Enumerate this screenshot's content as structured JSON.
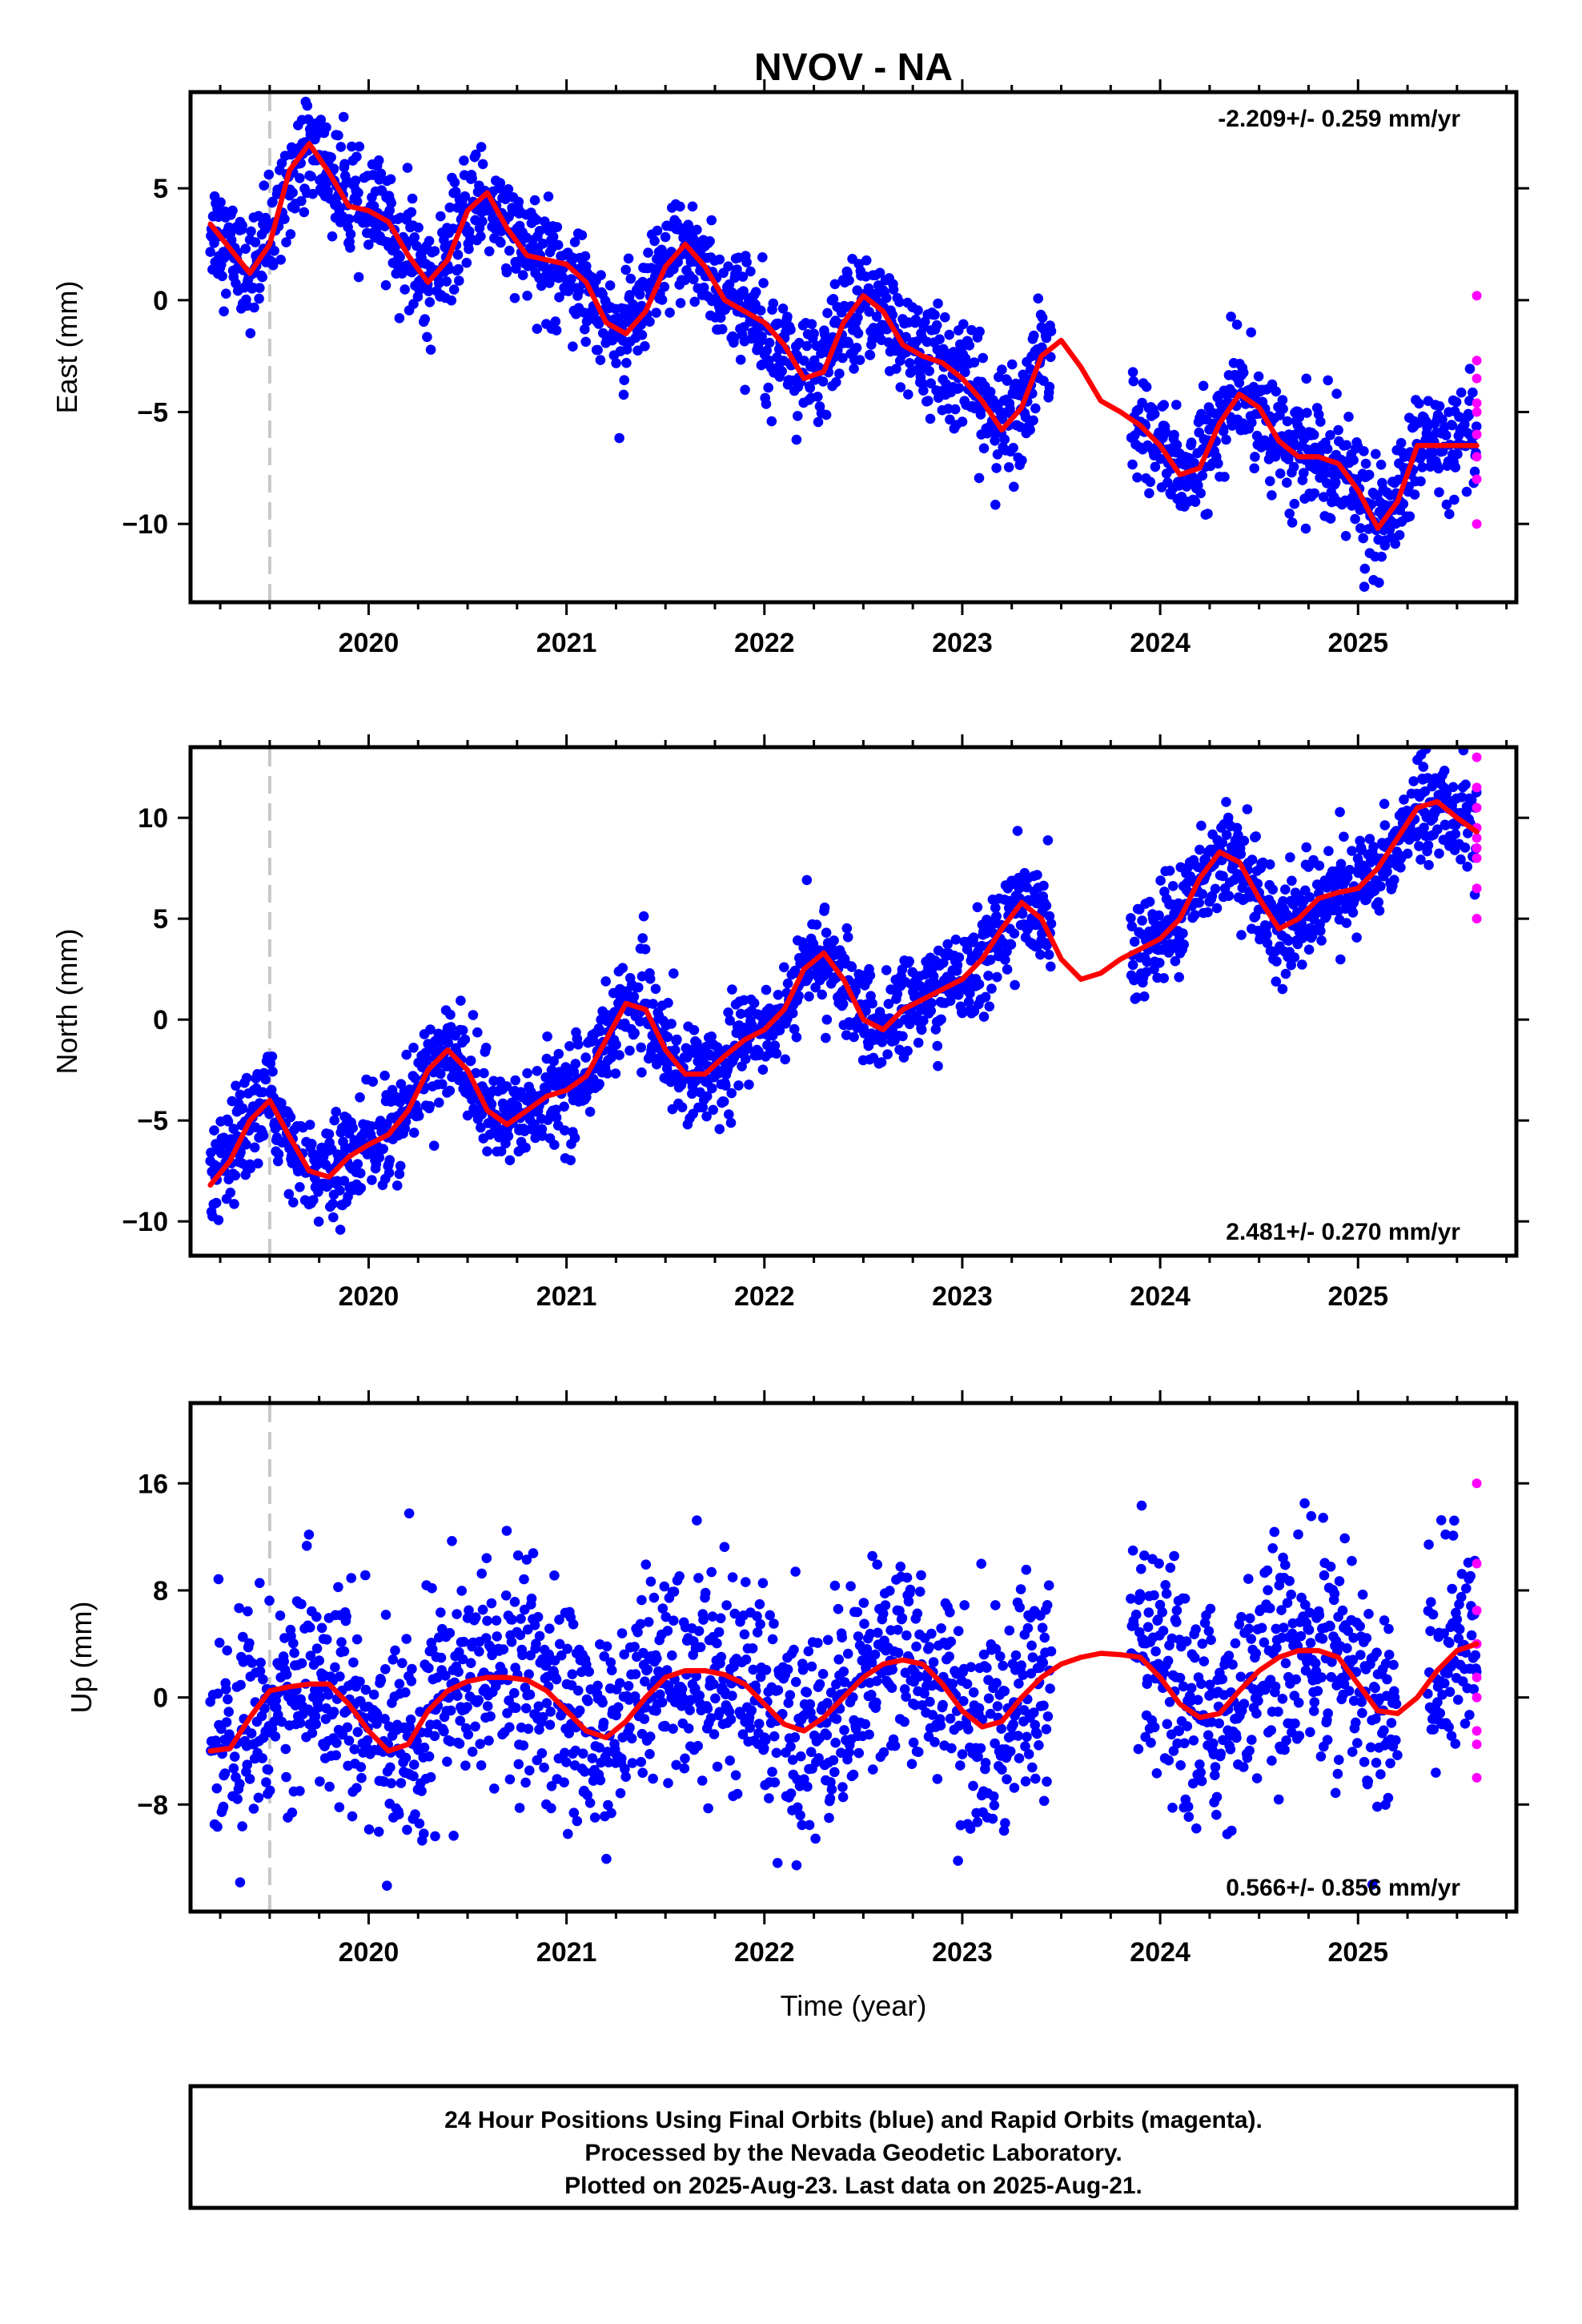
{
  "title": "NVOV - NA",
  "colors": {
    "final": "#0000ff",
    "rapid": "#ff00ff",
    "fit": "#ff0000",
    "marker": "#c8c8c8"
  },
  "footer": {
    "line1": "24 Hour Positions Using Final Orbits (blue) and Rapid Orbits (magenta).",
    "line2": "Processed by the Nevada Geodetic Laboratory.",
    "line3": "Plotted on 2025-Aug-23. Last data on 2025-Aug-21."
  },
  "chart_data": [
    {
      "type": "scatter",
      "ylabel": "East (mm)",
      "xlabel": "",
      "rate_label": "-2.209+/- 0.259 mm/yr",
      "xlim": [
        2019.1,
        2025.8
      ],
      "ylim": [
        -13.5,
        9.3
      ],
      "yticks": [
        5,
        0,
        -5,
        -10
      ],
      "xticks": [
        2020,
        2021,
        2022,
        2023,
        2024,
        2025
      ],
      "equipment_change": 2019.5,
      "fit_curve": {
        "x": [
          2019.2,
          2019.3,
          2019.4,
          2019.5,
          2019.6,
          2019.7,
          2019.8,
          2019.9,
          2020.0,
          2020.1,
          2020.2,
          2020.3,
          2020.4,
          2020.5,
          2020.6,
          2020.7,
          2020.8,
          2020.9,
          2021.0,
          2021.1,
          2021.2,
          2021.3,
          2021.4,
          2021.5,
          2021.6,
          2021.7,
          2021.8,
          2021.9,
          2022.0,
          2022.1,
          2022.2,
          2022.3,
          2022.4,
          2022.5,
          2022.6,
          2022.7,
          2022.8,
          2022.9,
          2023.0,
          2023.1,
          2023.2,
          2023.3,
          2023.4,
          2023.5,
          2023.6,
          2023.7,
          2023.8,
          2023.9,
          2024.0,
          2024.1,
          2024.2,
          2024.3,
          2024.4,
          2024.5,
          2024.6,
          2024.7,
          2024.8,
          2024.9,
          2025.0,
          2025.1,
          2025.2,
          2025.3,
          2025.4,
          2025.5,
          2025.6
        ],
        "y": [
          3.4,
          2.3,
          1.2,
          2.5,
          5.8,
          7.0,
          5.7,
          4.2,
          4.0,
          3.5,
          2.0,
          0.8,
          1.8,
          4.0,
          4.8,
          3.2,
          2.0,
          1.8,
          1.6,
          0.8,
          -1.0,
          -1.5,
          -0.5,
          1.5,
          2.5,
          1.5,
          0.0,
          -0.5,
          -1.0,
          -2.0,
          -3.5,
          -3.2,
          -1.0,
          0.2,
          -0.5,
          -2.0,
          -2.5,
          -2.8,
          -3.5,
          -4.5,
          -5.8,
          -4.8,
          -2.5,
          -1.8,
          -3.0,
          -4.5,
          -5.0,
          -5.6,
          -6.5,
          -7.8,
          -7.5,
          -5.5,
          -4.2,
          -4.8,
          -6.3,
          -7.0,
          -7.0,
          -7.3,
          -8.5,
          -10.2,
          -9.0,
          -6.5,
          -6.5,
          -6.5,
          -6.5
        ]
      },
      "scatter_model": {
        "x_start": 2019.2,
        "x_end": 2025.6,
        "gaps": [
          [
            2023.45,
            2023.85
          ]
        ],
        "noise_sd": 1.2
      },
      "rapid_points": {
        "x": [
          2025.6,
          2025.6,
          2025.6,
          2025.6,
          2025.6,
          2025.6,
          2025.6,
          2025.6,
          2025.6
        ],
        "y": [
          0.2,
          -2.7,
          -3.5,
          -4.6,
          -5.0,
          -6.0,
          -7.0,
          -8.0,
          -10.0
        ]
      }
    },
    {
      "type": "scatter",
      "ylabel": "North (mm)",
      "xlabel": "",
      "rate_label": "2.481+/- 0.270 mm/yr",
      "xlim": [
        2019.1,
        2025.8
      ],
      "ylim": [
        -11.7,
        13.5
      ],
      "yticks": [
        10,
        5,
        0,
        -5,
        -10
      ],
      "xticks": [
        2020,
        2021,
        2022,
        2023,
        2024,
        2025
      ],
      "equipment_change": 2019.5,
      "fit_curve": {
        "x": [
          2019.2,
          2019.3,
          2019.4,
          2019.5,
          2019.6,
          2019.7,
          2019.8,
          2019.9,
          2020.0,
          2020.1,
          2020.2,
          2020.3,
          2020.4,
          2020.5,
          2020.6,
          2020.7,
          2020.8,
          2020.9,
          2021.0,
          2021.1,
          2021.2,
          2021.3,
          2021.4,
          2021.5,
          2021.6,
          2021.7,
          2021.8,
          2021.9,
          2022.0,
          2022.1,
          2022.2,
          2022.3,
          2022.4,
          2022.5,
          2022.6,
          2022.7,
          2022.8,
          2022.9,
          2023.0,
          2023.1,
          2023.2,
          2023.3,
          2023.4,
          2023.5,
          2023.6,
          2023.7,
          2023.8,
          2023.9,
          2024.0,
          2024.1,
          2024.2,
          2024.3,
          2024.4,
          2024.5,
          2024.6,
          2024.7,
          2024.8,
          2024.9,
          2025.0,
          2025.1,
          2025.2,
          2025.3,
          2025.4,
          2025.5,
          2025.6
        ],
        "y": [
          -8.2,
          -7.0,
          -5.0,
          -4.0,
          -5.8,
          -7.5,
          -7.8,
          -6.8,
          -6.2,
          -5.7,
          -4.5,
          -2.5,
          -1.5,
          -2.5,
          -4.5,
          -5.2,
          -4.5,
          -3.8,
          -3.5,
          -2.8,
          -1.0,
          0.8,
          0.5,
          -1.5,
          -2.7,
          -2.7,
          -1.8,
          -1.0,
          -0.5,
          0.5,
          2.5,
          3.3,
          2.0,
          0.0,
          -0.5,
          0.5,
          1.0,
          1.5,
          2.0,
          3.0,
          4.5,
          5.8,
          5.0,
          3.0,
          2.0,
          2.3,
          3.0,
          3.5,
          4.0,
          5.0,
          7.0,
          8.3,
          7.8,
          6.0,
          4.5,
          5.0,
          6.0,
          6.3,
          6.5,
          7.5,
          9.0,
          10.5,
          10.8,
          10.0,
          9.3
        ]
      },
      "scatter_model": {
        "x_start": 2019.2,
        "x_end": 2025.6,
        "gaps": [
          [
            2023.45,
            2023.85
          ]
        ],
        "noise_sd": 1.2
      },
      "rapid_points": {
        "x": [
          2025.6,
          2025.6,
          2025.6,
          2025.6,
          2025.6,
          2025.6,
          2025.6,
          2025.6,
          2025.6
        ],
        "y": [
          13.0,
          11.5,
          10.5,
          9.5,
          9.0,
          8.5,
          8.0,
          6.5,
          5.0
        ]
      }
    },
    {
      "type": "scatter",
      "ylabel": "Up (mm)",
      "xlabel": "Time (year)",
      "rate_label": "0.566+/- 0.856 mm/yr",
      "xlim": [
        2019.1,
        2025.8
      ],
      "ylim": [
        -16.0,
        22.0
      ],
      "yticks": [
        16,
        8,
        0,
        -8
      ],
      "xticks": [
        2020,
        2021,
        2022,
        2023,
        2024,
        2025
      ],
      "equipment_change": 2019.5,
      "fit_curve": {
        "x": [
          2019.2,
          2019.3,
          2019.4,
          2019.5,
          2019.6,
          2019.7,
          2019.8,
          2019.9,
          2020.0,
          2020.1,
          2020.2,
          2020.3,
          2020.4,
          2020.5,
          2020.6,
          2020.7,
          2020.8,
          2020.9,
          2021.0,
          2021.1,
          2021.2,
          2021.3,
          2021.4,
          2021.5,
          2021.6,
          2021.7,
          2021.8,
          2021.9,
          2022.0,
          2022.1,
          2022.2,
          2022.3,
          2022.4,
          2022.5,
          2022.6,
          2022.7,
          2022.8,
          2022.9,
          2023.0,
          2023.1,
          2023.2,
          2023.3,
          2023.4,
          2023.5,
          2023.6,
          2023.7,
          2023.8,
          2023.9,
          2024.0,
          2024.1,
          2024.2,
          2024.3,
          2024.4,
          2024.5,
          2024.6,
          2024.7,
          2024.8,
          2024.9,
          2025.0,
          2025.1,
          2025.2,
          2025.3,
          2025.4,
          2025.5,
          2025.6
        ],
        "y": [
          -4.0,
          -3.8,
          -1.5,
          0.5,
          0.8,
          1.0,
          1.0,
          -0.5,
          -2.5,
          -4.0,
          -3.5,
          -1.0,
          0.5,
          1.2,
          1.5,
          1.5,
          1.3,
          0.5,
          -1.0,
          -2.5,
          -3.0,
          -1.8,
          0.0,
          1.5,
          2.0,
          2.0,
          1.7,
          1.0,
          -0.5,
          -2.0,
          -2.5,
          -1.5,
          0.0,
          1.5,
          2.5,
          2.8,
          2.5,
          1.0,
          -1.0,
          -2.2,
          -1.8,
          0.0,
          1.5,
          2.5,
          3.0,
          3.3,
          3.2,
          3.0,
          1.5,
          -0.5,
          -1.5,
          -1.2,
          0.5,
          2.0,
          3.0,
          3.5,
          3.5,
          3.0,
          1.0,
          -1.0,
          -1.2,
          0.0,
          2.0,
          3.5,
          4.0
        ]
      },
      "scatter_model": {
        "x_start": 2019.2,
        "x_end": 2025.6,
        "gaps": [
          [
            2023.45,
            2023.85
          ],
          [
            2025.2,
            2025.35
          ]
        ],
        "noise_sd": 4.0
      },
      "rapid_points": {
        "x": [
          2025.6,
          2025.6,
          2025.6,
          2025.6,
          2025.6,
          2025.6,
          2025.6,
          2025.6,
          2025.6
        ],
        "y": [
          16.0,
          10.0,
          6.5,
          4.0,
          1.5,
          0.0,
          -2.5,
          -3.5,
          -6.0
        ]
      }
    }
  ]
}
